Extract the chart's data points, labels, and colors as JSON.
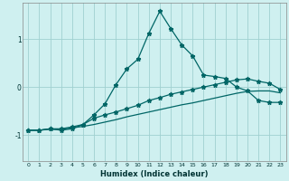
{
  "xlabel": "Humidex (Indice chaleur)",
  "background_color": "#cff0f0",
  "grid_color": "#a0d0d0",
  "line_color": "#006666",
  "xlim": [
    -0.5,
    23.5
  ],
  "ylim": [
    -1.55,
    1.75
  ],
  "xticks": [
    0,
    1,
    2,
    3,
    4,
    5,
    6,
    7,
    8,
    9,
    10,
    11,
    12,
    13,
    14,
    15,
    16,
    17,
    18,
    19,
    20,
    21,
    22,
    23
  ],
  "yticks": [
    -1,
    0,
    1
  ],
  "x": [
    0,
    1,
    2,
    3,
    4,
    5,
    6,
    7,
    8,
    9,
    10,
    11,
    12,
    13,
    14,
    15,
    16,
    17,
    18,
    19,
    20,
    21,
    22,
    23
  ],
  "line1_y": [
    -0.9,
    -0.9,
    -0.87,
    -0.9,
    -0.87,
    -0.78,
    -0.58,
    -0.35,
    0.05,
    0.38,
    0.58,
    1.12,
    1.58,
    1.22,
    0.88,
    0.65,
    0.25,
    0.22,
    0.18,
    0.0,
    -0.08,
    -0.28,
    -0.32,
    -0.32
  ],
  "line2_y": [
    -0.9,
    -0.9,
    -0.87,
    -0.87,
    -0.83,
    -0.78,
    -0.65,
    -0.58,
    -0.52,
    -0.45,
    -0.38,
    -0.28,
    -0.22,
    -0.15,
    -0.1,
    -0.05,
    0.0,
    0.05,
    0.1,
    0.15,
    0.17,
    0.12,
    0.08,
    -0.05
  ],
  "line3_y": [
    -0.9,
    -0.9,
    -0.88,
    -0.88,
    -0.85,
    -0.82,
    -0.78,
    -0.73,
    -0.68,
    -0.62,
    -0.57,
    -0.52,
    -0.47,
    -0.42,
    -0.37,
    -0.33,
    -0.28,
    -0.23,
    -0.18,
    -0.13,
    -0.09,
    -0.08,
    -0.08,
    -0.12
  ]
}
